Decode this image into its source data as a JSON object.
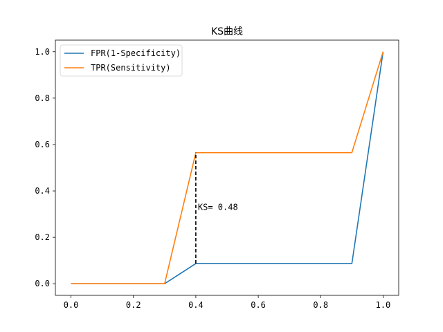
{
  "chart_data": {
    "type": "line",
    "title": "KS曲线",
    "xlabel": "",
    "ylabel": "",
    "xlim": [
      -0.05,
      1.05
    ],
    "ylim": [
      -0.05,
      1.05
    ],
    "x_ticks": [
      0.0,
      0.2,
      0.4,
      0.6,
      0.8,
      1.0
    ],
    "x_tick_labels": [
      "0.0",
      "0.2",
      "0.4",
      "0.6",
      "0.8",
      "1.0"
    ],
    "y_ticks": [
      0.0,
      0.2,
      0.4,
      0.6,
      0.8,
      1.0
    ],
    "y_tick_labels": [
      "0.0",
      "0.2",
      "0.4",
      "0.6",
      "0.8",
      "1.0"
    ],
    "grid": false,
    "legend_position": "upper-left",
    "series": [
      {
        "name": "FPR(1-Specificity)",
        "color": "#1f77b4",
        "x": [
          0.0,
          0.1,
          0.2,
          0.3,
          0.4,
          0.5,
          0.6,
          0.7,
          0.8,
          0.9,
          1.0
        ],
        "y": [
          0.0,
          0.0,
          0.0,
          0.0,
          0.087,
          0.087,
          0.087,
          0.087,
          0.087,
          0.087,
          1.0
        ]
      },
      {
        "name": "TPR(Sensitivity)",
        "color": "#ff7f0e",
        "x": [
          0.0,
          0.1,
          0.2,
          0.3,
          0.4,
          0.5,
          0.6,
          0.7,
          0.8,
          0.9,
          1.0
        ],
        "y": [
          0.0,
          0.0,
          0.0,
          0.0,
          0.565,
          0.565,
          0.565,
          0.565,
          0.565,
          0.565,
          1.0
        ]
      }
    ],
    "annotation": {
      "text": "KS= 0.48",
      "x": 0.4,
      "y_low": 0.087,
      "y_high": 0.565,
      "label_y": 0.33,
      "line_color": "#000000",
      "line_style": "dashed"
    }
  }
}
